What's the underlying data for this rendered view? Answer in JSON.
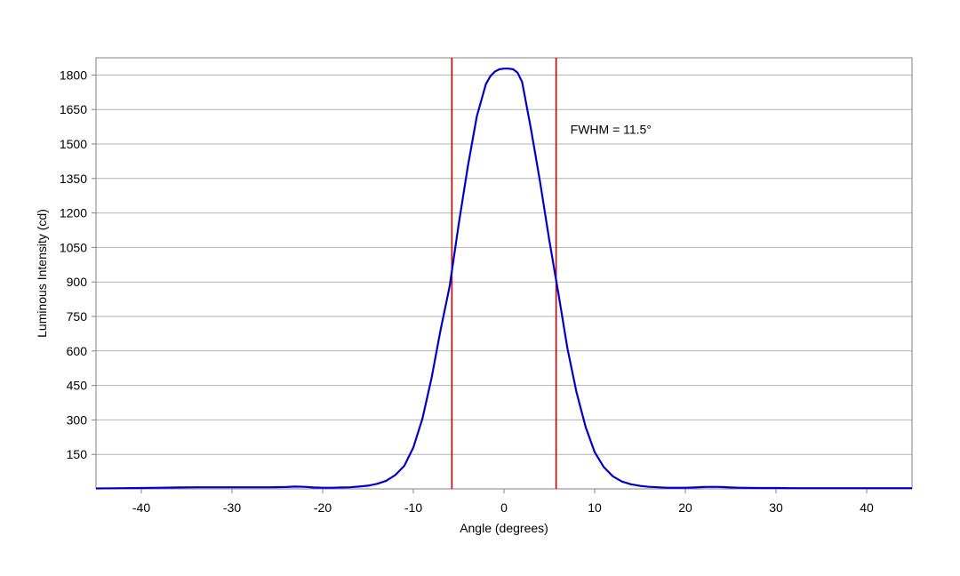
{
  "chart_data": {
    "type": "line",
    "title": "",
    "xlabel": "Angle (degrees)",
    "ylabel": "Luminous Intensity (cd)",
    "xlim": [
      -45,
      45
    ],
    "ylim": [
      0,
      1875
    ],
    "x_ticks": [
      -40,
      -30,
      -20,
      -10,
      0,
      10,
      20,
      30,
      40
    ],
    "y_ticks": [
      150,
      300,
      450,
      600,
      750,
      900,
      1050,
      1200,
      1350,
      1500,
      1650,
      1800
    ],
    "grid": true,
    "legend": "none",
    "series": [
      {
        "color": "#0000cc",
        "x": [
          -45,
          -42,
          -40,
          -38,
          -36,
          -34,
          -32,
          -30,
          -28,
          -26,
          -24,
          -23,
          -22,
          -21,
          -20,
          -19,
          -18,
          -17,
          -16,
          -15,
          -14,
          -13,
          -12,
          -11,
          -10,
          -9,
          -8,
          -7,
          -6,
          -5,
          -4,
          -3,
          -2,
          -1.5,
          -1,
          -0.5,
          0,
          0.5,
          1,
          1.5,
          2,
          3,
          4,
          5,
          6,
          7,
          8,
          9,
          10,
          11,
          12,
          13,
          14,
          15,
          16,
          17,
          18,
          19,
          20,
          21,
          22,
          23,
          24,
          25,
          26,
          28,
          30,
          32,
          34,
          36,
          38,
          40,
          42,
          45
        ],
        "y": [
          2,
          3,
          4,
          5,
          6,
          7,
          7,
          7,
          7,
          7,
          8,
          10,
          9,
          6,
          5,
          5,
          6,
          7,
          10,
          14,
          22,
          35,
          60,
          100,
          180,
          305,
          480,
          690,
          880,
          1150,
          1400,
          1620,
          1760,
          1795,
          1815,
          1825,
          1828,
          1828,
          1825,
          1810,
          1770,
          1560,
          1330,
          1080,
          850,
          610,
          420,
          270,
          160,
          95,
          55,
          32,
          20,
          13,
          9,
          7,
          5,
          5,
          5,
          6,
          8,
          9,
          8,
          6,
          5,
          4,
          4,
          3,
          3,
          3,
          3,
          3,
          3,
          3
        ]
      }
    ],
    "markers": [
      {
        "x": -5.75,
        "color": "#cc0000"
      },
      {
        "x": 5.75,
        "color": "#cc0000"
      }
    ],
    "annotation": "FWHM = 11.5°"
  }
}
